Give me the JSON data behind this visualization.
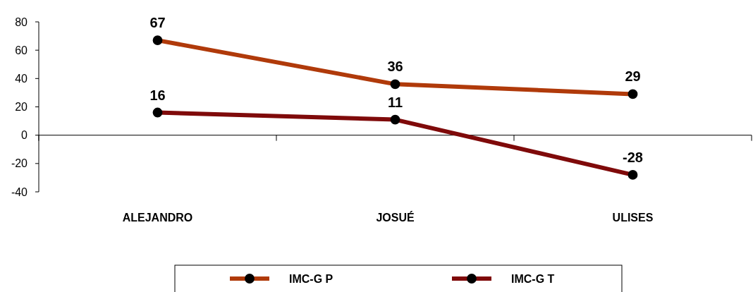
{
  "chart_data": {
    "type": "line",
    "categories": [
      "ALEJANDRO",
      "JOSUÉ",
      "ULISES"
    ],
    "series": [
      {
        "name": "IMC-G P",
        "color": "#b03a0a",
        "values": [
          67,
          36,
          29
        ]
      },
      {
        "name": "IMC-G T",
        "color": "#7f0a0a",
        "values": [
          16,
          11,
          -28
        ]
      }
    ],
    "ylim": [
      -40,
      80
    ],
    "yticks": [
      -40,
      -20,
      0,
      20,
      40,
      60,
      80
    ],
    "data_labels": true,
    "marker": "circle",
    "legend": "bottom"
  }
}
